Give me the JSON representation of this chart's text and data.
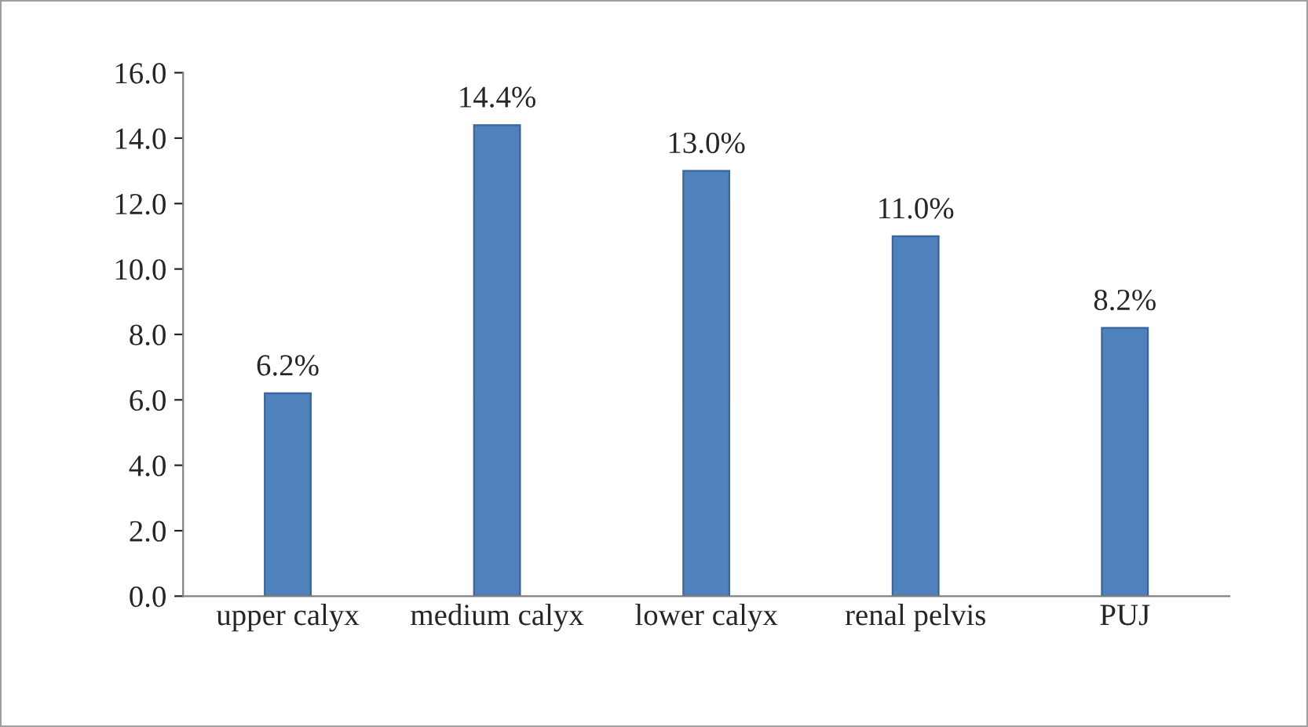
{
  "chart_data": {
    "type": "bar",
    "categories": [
      "upper calyx",
      "medium calyx",
      "lower calyx",
      "renal pelvis",
      "PUJ"
    ],
    "values": [
      6.2,
      14.4,
      13.0,
      11.0,
      8.2
    ],
    "value_labels": [
      "6.2%",
      "14.4%",
      "13.0%",
      "11.0%",
      "8.2%"
    ],
    "color": "#4f81bd",
    "ylim": [
      0,
      16
    ],
    "yticks": [
      {
        "value": 0,
        "label": "0.0"
      },
      {
        "value": 2,
        "label": "2.0"
      },
      {
        "value": 4,
        "label": "4.0"
      },
      {
        "value": 6,
        "label": "6.0"
      },
      {
        "value": 8,
        "label": "8.0"
      },
      {
        "value": 10,
        "label": "10.0"
      },
      {
        "value": 12,
        "label": "12.0"
      },
      {
        "value": 14,
        "label": "14.0"
      },
      {
        "value": 16,
        "label": "16.0"
      }
    ],
    "grid": false,
    "legend": false
  }
}
